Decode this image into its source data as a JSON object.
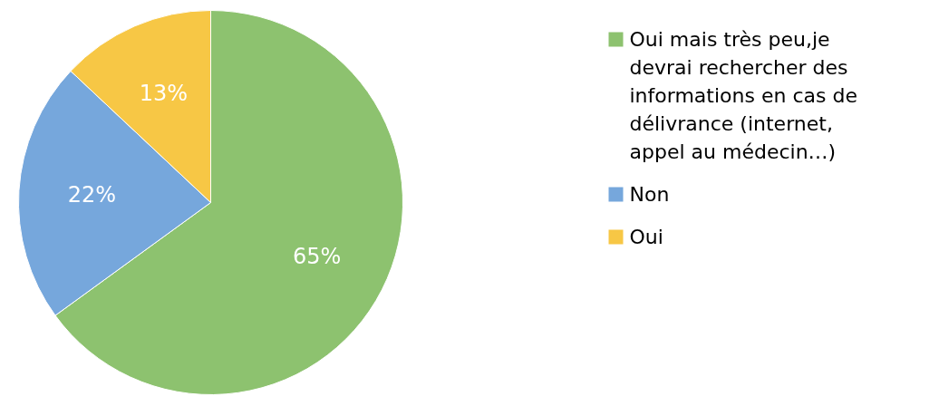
{
  "chart_data": {
    "type": "pie",
    "categories": [
      "Oui mais très peu,je devrai   rechercher des informations en cas de délivrance (internet, appel au médecin…)",
      "Non",
      "Oui"
    ],
    "values": [
      65,
      22,
      13
    ],
    "colors": [
      "#8dc26f",
      "#76a7dc",
      "#f7c745"
    ],
    "value_labels": [
      "65%",
      "22%",
      "13%"
    ],
    "legend": "right"
  }
}
